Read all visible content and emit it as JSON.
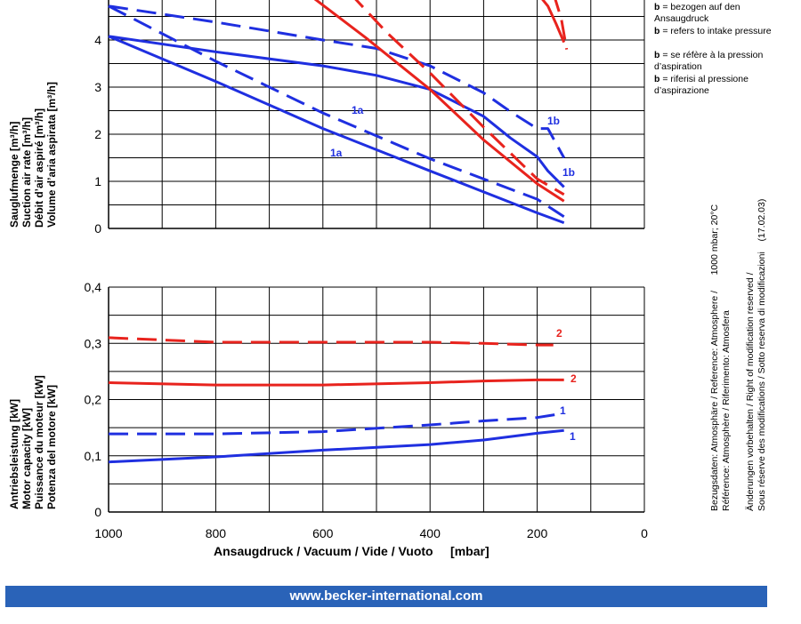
{
  "upper_ylabel": [
    "Sauglufmenge [m³/h]",
    "Suction air rate [m³/h]",
    "Débit d’air aspiré [m³/h]",
    "Volume d’aria aspirata [m³/h]"
  ],
  "lower_ylabel": [
    "Antriebsleistung [kW]",
    "Motor capacity [kW]",
    "Puissance du moteur [kW]",
    "Potenza del motore [kW]"
  ],
  "xlabel": "Ansaugdruck / Vacuum / Vide / Vuoto     [mbar]",
  "notes": [
    {
      "key": "b",
      "text": "= bezogen auf den Ansaugdruck"
    },
    {
      "key": "b",
      "text": "= refers to intake pressure"
    },
    {
      "key": "b",
      "text": "= se réfère à la pression d’aspiration"
    },
    {
      "key": "b",
      "text": "= riferisi al pressione d’aspirazione"
    }
  ],
  "side_text": {
    "line1": "Bezugsdaten: Atmosphäre / Reference: Atmosphere /",
    "line1b": "1000 mbar; 20°C",
    "line2": "Référence: Atmosphère / Riferimento: Atmosfera",
    "line3": "Änderungen vorbehalten / Right of modification reserved /",
    "line4": "Sous réserve des modifications / Sotto reserva di modificazioni",
    "line4b": "(17.02.03)"
  },
  "footer": "www.becker-international.com",
  "colors": {
    "blue": "#1f2fe0",
    "red": "#e8231d",
    "footer_bg": "#2a63b8"
  },
  "chart_data": [
    {
      "type": "line",
      "xlim": [
        1000,
        0
      ],
      "ylim": [
        0,
        5
      ],
      "yticks": [
        0,
        1,
        2,
        3,
        4
      ],
      "grid": true,
      "series": [
        {
          "name": "1a",
          "color": "blue",
          "dashed": false,
          "x": [
            1000,
            800,
            600,
            400,
            200,
            150
          ],
          "y": [
            4.08,
            3.12,
            2.12,
            1.22,
            0.33,
            0.12
          ]
        },
        {
          "name": "1a",
          "color": "blue",
          "dashed": true,
          "x": [
            1000,
            800,
            600,
            400,
            200,
            150
          ],
          "y": [
            4.72,
            3.55,
            2.45,
            1.48,
            0.62,
            0.25
          ]
        },
        {
          "name": "1b",
          "color": "blue",
          "dashed": false,
          "x": [
            1000,
            800,
            600,
            500,
            400,
            300,
            250,
            200,
            180,
            150
          ],
          "y": [
            4.08,
            3.75,
            3.45,
            3.25,
            2.95,
            2.38,
            1.92,
            1.52,
            1.22,
            0.88
          ]
        },
        {
          "name": "1b",
          "color": "blue",
          "dashed": true,
          "x": [
            1000,
            800,
            600,
            500,
            400,
            300,
            250,
            200,
            180,
            150
          ],
          "y": [
            4.72,
            4.38,
            4.0,
            3.82,
            3.45,
            2.88,
            2.48,
            2.12,
            2.12,
            1.5
          ]
        },
        {
          "name": "",
          "color": "red",
          "dashed": false,
          "x": [
            630,
            520,
            400,
            300,
            200,
            150
          ],
          "y": [
            5.0,
            4.05,
            2.95,
            1.88,
            0.95,
            0.58
          ]
        },
        {
          "name": "",
          "color": "red",
          "dashed": true,
          "x": [
            550,
            480,
            400,
            300,
            200,
            150
          ],
          "y": [
            5.0,
            4.15,
            3.3,
            2.15,
            1.05,
            0.72
          ]
        },
        {
          "name": "",
          "color": "red",
          "dashed": false,
          "x": [
            200,
            180,
            165,
            150
          ],
          "y": [
            5.0,
            4.72,
            4.35,
            3.95
          ]
        },
        {
          "name": "",
          "color": "red",
          "dashed": true,
          "x": [
            170,
            155,
            145
          ],
          "y": [
            5.0,
            4.45,
            3.8
          ]
        }
      ]
    },
    {
      "type": "line",
      "xlim": [
        1000,
        0
      ],
      "ylim": [
        0,
        0.4
      ],
      "xticks": [
        1000,
        800,
        600,
        400,
        200,
        0
      ],
      "yticks": [
        0,
        0.1,
        0.2,
        0.3,
        0.4
      ],
      "ytick_labels": [
        "0",
        "0,1",
        "0,2",
        "0,3",
        "0,4"
      ],
      "grid": true,
      "series": [
        {
          "name": "2",
          "color": "red",
          "dashed": true,
          "x": [
            1000,
            800,
            600,
            400,
            300,
            200,
            170
          ],
          "y": [
            0.31,
            0.302,
            0.302,
            0.302,
            0.3,
            0.297,
            0.297
          ]
        },
        {
          "name": "2",
          "color": "red",
          "dashed": false,
          "x": [
            1000,
            800,
            600,
            400,
            300,
            200,
            150
          ],
          "y": [
            0.23,
            0.226,
            0.226,
            0.23,
            0.233,
            0.235,
            0.235
          ]
        },
        {
          "name": "1",
          "color": "blue",
          "dashed": true,
          "x": [
            1000,
            800,
            600,
            400,
            300,
            200,
            160
          ],
          "y": [
            0.139,
            0.139,
            0.143,
            0.155,
            0.162,
            0.168,
            0.174
          ]
        },
        {
          "name": "1",
          "color": "blue",
          "dashed": false,
          "x": [
            1000,
            800,
            600,
            400,
            300,
            200,
            150
          ],
          "y": [
            0.089,
            0.098,
            0.11,
            0.12,
            0.128,
            0.14,
            0.145
          ]
        }
      ]
    }
  ],
  "upper_labels": [
    "1a",
    "1a",
    "1b",
    "1b"
  ],
  "lower_labels": [
    "2",
    "2",
    "1",
    "1"
  ]
}
